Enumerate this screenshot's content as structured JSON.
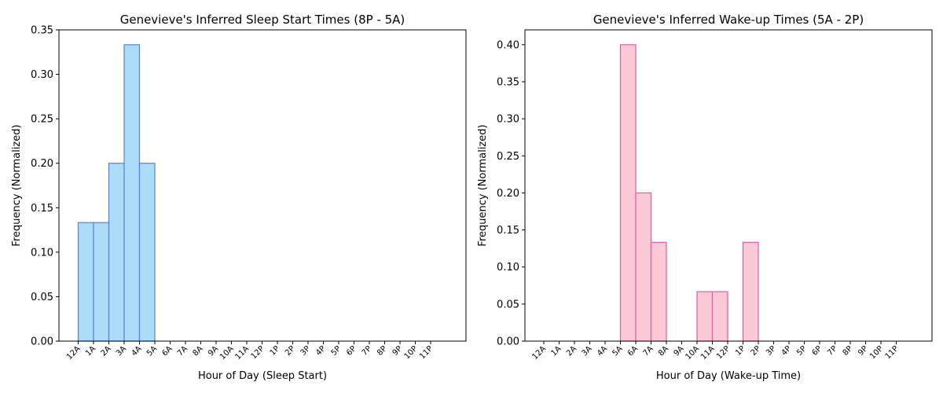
{
  "chart_data": [
    {
      "type": "bar",
      "title": "Genevieve's Inferred Sleep Start Times (8P - 5A)",
      "xlabel": "Hour of Day (Sleep Start)",
      "ylabel": "Frequency (Normalized)",
      "categories": [
        "12A",
        "1A",
        "2A",
        "3A",
        "4A",
        "5A",
        "6A",
        "7A",
        "8A",
        "9A",
        "10A",
        "11A",
        "12P",
        "1P",
        "2P",
        "3P",
        "4P",
        "5P",
        "6P",
        "7P",
        "8P",
        "9P",
        "10P",
        "11P"
      ],
      "values": [
        0.1333,
        0.1333,
        0.2,
        0.3333,
        0.2,
        0,
        0,
        0,
        0,
        0,
        0,
        0,
        0,
        0,
        0,
        0,
        0,
        0,
        0,
        0,
        0,
        0,
        0,
        0
      ],
      "ylim": [
        0,
        0.35
      ],
      "yticks": [
        "0.00",
        "0.05",
        "0.10",
        "0.15",
        "0.20",
        "0.25",
        "0.30",
        "0.35"
      ],
      "bar_fill": "#addcf8",
      "bar_edge": "#5b7fe0",
      "grid": false
    },
    {
      "type": "bar",
      "title": "Genevieve's Inferred Wake-up Times (5A - 2P)",
      "xlabel": "Hour of Day (Wake-up Time)",
      "ylabel": "Frequency (Normalized)",
      "categories": [
        "12A",
        "1A",
        "2A",
        "3A",
        "4A",
        "5A",
        "6A",
        "7A",
        "8A",
        "9A",
        "10A",
        "11A",
        "12P",
        "1P",
        "2P",
        "3P",
        "4P",
        "5P",
        "6P",
        "7P",
        "8P",
        "9P",
        "10P",
        "11P"
      ],
      "values": [
        0,
        0,
        0,
        0,
        0,
        0.4,
        0.2,
        0.1333,
        0,
        0,
        0.0667,
        0.0667,
        0,
        0.1333,
        0,
        0,
        0,
        0,
        0,
        0,
        0,
        0,
        0,
        0
      ],
      "ylim": [
        0,
        0.42
      ],
      "yticks": [
        "0.00",
        "0.05",
        "0.10",
        "0.15",
        "0.20",
        "0.25",
        "0.30",
        "0.35",
        "0.40"
      ],
      "bar_fill": "#fccad6",
      "bar_edge": "#e65aa8",
      "grid": false
    }
  ]
}
